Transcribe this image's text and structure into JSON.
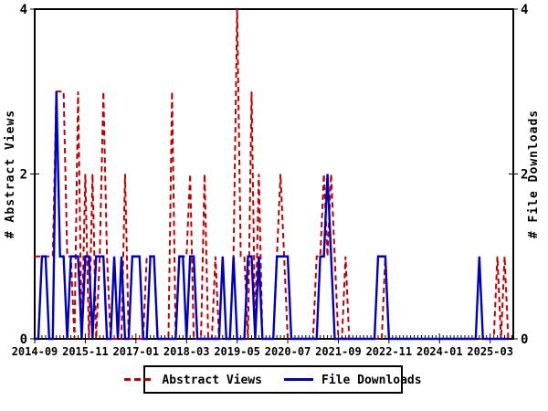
{
  "figure": {
    "background": "#ffffff",
    "plot_border_color": "#000000"
  },
  "chart_data": {
    "type": "line",
    "title": "",
    "x_months_start": "2014-09",
    "x_months_count": 132,
    "x_tick_interval_months": 14,
    "x_tick_labels": [
      "2014-09",
      "2015-11",
      "2017-01",
      "2018-03",
      "2019-05",
      "2020-07",
      "2021-09",
      "2022-11",
      "2024-01",
      "2025-03"
    ],
    "y_left_label": "# Abstract Views",
    "y_right_label": "# File Downloads",
    "y_ticks": [
      0,
      2,
      4
    ],
    "ylim": [
      0,
      4
    ],
    "grid": false,
    "legend_position": "bottom-center",
    "series": [
      {
        "name": "Abstract Views",
        "axis": "left",
        "color": "#c00000",
        "style": "dashed",
        "values": [
          1,
          1,
          1,
          1,
          1,
          1,
          3,
          3,
          3,
          1,
          1,
          0,
          3,
          0,
          2,
          0,
          2,
          0,
          1,
          3,
          1,
          0,
          0,
          0,
          0,
          2,
          0,
          0,
          0,
          0,
          0,
          1,
          1,
          1,
          0,
          0,
          0,
          0,
          3,
          0,
          1,
          1,
          1,
          2,
          0,
          0,
          0,
          2,
          0,
          0,
          1,
          0,
          0,
          0,
          0,
          1,
          4,
          1,
          1,
          0,
          3,
          0,
          2,
          0,
          0,
          0,
          0,
          1,
          2,
          1,
          0,
          0,
          0,
          0,
          0,
          0,
          0,
          0,
          1,
          1,
          2,
          1,
          2,
          1,
          0,
          0,
          1,
          0,
          0,
          0,
          0,
          0,
          0,
          0,
          0,
          0,
          0,
          1,
          0,
          0,
          0,
          0,
          0,
          0,
          0,
          0,
          0,
          0,
          0,
          0,
          0,
          0,
          0,
          0,
          0,
          0,
          0,
          0,
          0,
          0,
          0,
          0,
          0,
          0,
          0,
          0,
          0,
          0,
          1,
          0,
          1,
          0
        ]
      },
      {
        "name": "File Downloads",
        "axis": "right",
        "color": "#0000c0",
        "style": "solid",
        "values": [
          0,
          0,
          1,
          1,
          0,
          0,
          3,
          1,
          1,
          0,
          1,
          1,
          1,
          0,
          1,
          1,
          0,
          1,
          1,
          1,
          0,
          0,
          1,
          0,
          1,
          0,
          0,
          1,
          1,
          1,
          0,
          0,
          1,
          1,
          0,
          0,
          0,
          0,
          0,
          0,
          1,
          1,
          0,
          1,
          1,
          0,
          0,
          0,
          0,
          0,
          0,
          0,
          1,
          0,
          0,
          1,
          0,
          0,
          0,
          1,
          1,
          0,
          1,
          0,
          0,
          0,
          0,
          1,
          1,
          1,
          1,
          0,
          0,
          0,
          0,
          0,
          0,
          0,
          0,
          1,
          1,
          2,
          1,
          0,
          0,
          0,
          0,
          0,
          0,
          0,
          0,
          0,
          0,
          0,
          0,
          1,
          1,
          1,
          0,
          0,
          0,
          0,
          0,
          0,
          0,
          0,
          0,
          0,
          0,
          0,
          0,
          0,
          0,
          0,
          0,
          0,
          0,
          0,
          0,
          0,
          0,
          0,
          0,
          1,
          0,
          0,
          0,
          0,
          0,
          0,
          0,
          0
        ]
      }
    ]
  },
  "legend": {
    "items": [
      {
        "label": "Abstract Views",
        "color": "#c00000",
        "style": "dashed"
      },
      {
        "label": "File Downloads",
        "color": "#0000c0",
        "style": "solid"
      }
    ]
  }
}
